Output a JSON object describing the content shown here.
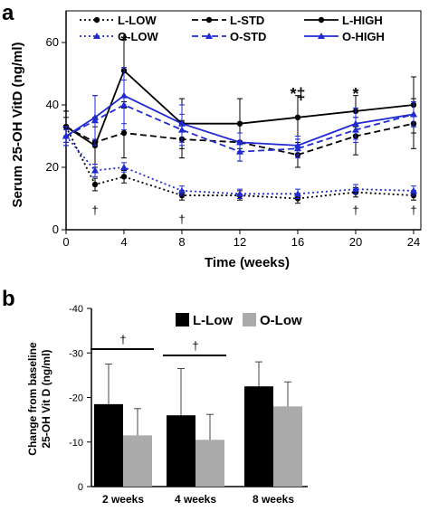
{
  "chart_data": [
    {
      "type": "line",
      "panel": "a",
      "xlabel": "Time (weeks)",
      "ylabel": "Serum 25-OH VitD (ng/ml)",
      "xlim": [
        0,
        24
      ],
      "ylim": [
        0,
        60
      ],
      "x_ticks": [
        "0",
        "4",
        "8",
        "12",
        "16",
        "20",
        "24"
      ],
      "y_ticks": [
        "0",
        "20",
        "40",
        "60"
      ],
      "legend_position": "top",
      "series": [
        {
          "name": "L-LOW",
          "color": "#000000",
          "marker": "circle",
          "dash": "2 3",
          "x": [
            0,
            2,
            4,
            8,
            12,
            16,
            20,
            24
          ],
          "y": [
            33,
            14.5,
            17,
            11,
            11,
            10,
            12,
            11
          ],
          "err": [
            3,
            2,
            2,
            1.5,
            1.5,
            1.5,
            1.5,
            1.5
          ]
        },
        {
          "name": "L-STD",
          "color": "#000000",
          "marker": "circle",
          "dash": "7 4",
          "x": [
            0,
            2,
            4,
            8,
            12,
            16,
            20,
            24
          ],
          "y": [
            33,
            28,
            31,
            29,
            28,
            24,
            30,
            34
          ],
          "err": [
            5,
            8,
            8,
            6,
            6,
            4,
            6,
            8
          ]
        },
        {
          "name": "L-HIGH",
          "color": "#000000",
          "marker": "circle",
          "dash": "",
          "x": [
            0,
            2,
            4,
            8,
            12,
            16,
            20,
            24
          ],
          "y": [
            33,
            27,
            51,
            34,
            34,
            36,
            38,
            40
          ],
          "err": [
            5,
            6,
            10,
            8,
            8,
            7,
            5,
            9
          ]
        },
        {
          "name": "O-LOW",
          "color": "#1f2bd0",
          "marker": "triangle",
          "dash": "2 3",
          "x": [
            0,
            2,
            4,
            8,
            12,
            16,
            20,
            24
          ],
          "y": [
            30,
            19,
            20,
            12.5,
            11.5,
            11.5,
            13,
            12.5
          ],
          "err": [
            2,
            2,
            1.5,
            1.5,
            1.5,
            1.5,
            1.5,
            1.5
          ]
        },
        {
          "name": "O-STD",
          "color": "#1f2bd0",
          "marker": "triangle",
          "dash": "7 4",
          "x": [
            0,
            2,
            4,
            8,
            12,
            16,
            20,
            24
          ],
          "y": [
            30,
            35,
            40,
            32,
            25,
            26,
            32,
            37
          ],
          "err": [
            3,
            8,
            8,
            5,
            3,
            3,
            4,
            4
          ]
        },
        {
          "name": "O-HIGH",
          "color": "#1f2bd0",
          "marker": "triangle",
          "dash": "",
          "x": [
            0,
            2,
            4,
            8,
            12,
            16,
            20,
            24
          ],
          "y": [
            30,
            36,
            43,
            34,
            28,
            27,
            34,
            37
          ],
          "err": [
            3,
            7,
            9,
            6,
            3,
            3,
            5,
            4
          ]
        }
      ],
      "annotations": [
        {
          "text": "*",
          "x": 4,
          "y": 61
        },
        {
          "text": "*‡",
          "x": 16,
          "y": 44
        },
        {
          "text": "*",
          "x": 20,
          "y": 44
        },
        {
          "text": "†",
          "x": 2,
          "y": 5
        },
        {
          "text": "†",
          "x": 8,
          "y": 2
        },
        {
          "text": "†",
          "x": 20,
          "y": 5
        },
        {
          "text": "†",
          "x": 24,
          "y": 5
        }
      ]
    },
    {
      "type": "bar",
      "panel": "b",
      "ylabel_line1": "Change from baseline",
      "ylabel_line2": "25-OH Vit D (ng/ml)",
      "categories": [
        "2 weeks",
        "4 weeks",
        "8 weeks"
      ],
      "ylim": [
        0,
        -40
      ],
      "y_ticks": [
        "0",
        "-10",
        "-20",
        "-30",
        "-40"
      ],
      "legend_position": "top-right",
      "series": [
        {
          "name": "L-Low",
          "color": "#000000",
          "values": [
            -18.5,
            -16,
            -22.5
          ],
          "err": [
            9,
            10.5,
            5.5
          ]
        },
        {
          "name": "O-Low",
          "color": "#aaaaaa",
          "values": [
            -11.5,
            -10.5,
            -18
          ],
          "err": [
            6,
            5.7,
            5.5
          ]
        }
      ],
      "annotations": [
        {
          "text": "†",
          "category": "2 weeks"
        },
        {
          "text": "†",
          "category": "4 weeks"
        }
      ]
    }
  ],
  "panel_labels": {
    "a": "a",
    "b": "b"
  }
}
